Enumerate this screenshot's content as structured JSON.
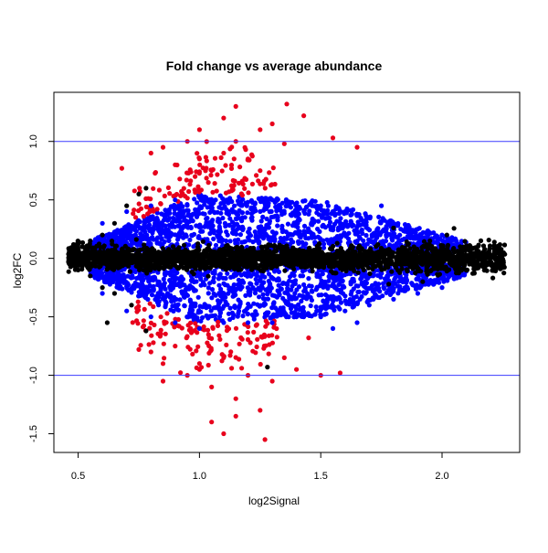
{
  "chart_data": {
    "type": "scatter",
    "title": "Fold change vs average abundance",
    "xlabel": "log2Signal",
    "ylabel": "log2FC",
    "xlim": [
      0.4,
      2.32
    ],
    "ylim": [
      -1.66,
      1.42
    ],
    "xticks": [
      0.5,
      1.0,
      1.5,
      2.0
    ],
    "yticks": [
      -1.5,
      -1.0,
      -0.5,
      0.0,
      0.5,
      1.0
    ],
    "xtick_labels": [
      "0.5",
      "1.0",
      "1.5",
      "2.0"
    ],
    "ytick_labels": [
      "-1.5",
      "-1.0",
      "-0.5",
      "0.0",
      "0.5",
      "1.0"
    ],
    "hlines": [
      1.0,
      -1.0
    ],
    "hline_color": "#3b3bff",
    "grid": false,
    "series": [
      {
        "color": "#000000",
        "points": [
          [
            0.47,
            0.02
          ],
          [
            0.5,
            0.12
          ],
          [
            0.5,
            -0.1
          ],
          [
            0.55,
            0.15
          ],
          [
            0.55,
            -0.15
          ],
          [
            0.6,
            0.2
          ],
          [
            0.6,
            -0.25
          ],
          [
            0.65,
            0.3
          ],
          [
            0.65,
            -0.3
          ],
          [
            0.7,
            0.45
          ],
          [
            0.72,
            -0.4
          ],
          [
            0.75,
            0.55
          ],
          [
            0.78,
            0.6
          ],
          [
            0.62,
            -0.55
          ],
          [
            0.85,
            0.0
          ],
          [
            1.0,
            0.02
          ],
          [
            1.2,
            -0.02
          ],
          [
            1.4,
            0.0
          ],
          [
            1.6,
            0.01
          ],
          [
            1.75,
            0.02
          ],
          [
            1.85,
            0.05
          ],
          [
            1.9,
            -0.1
          ],
          [
            1.95,
            0.15
          ],
          [
            2.0,
            0.1
          ],
          [
            2.05,
            -0.05
          ],
          [
            2.1,
            0.08
          ],
          [
            2.15,
            -0.08
          ],
          [
            2.2,
            0.0
          ],
          [
            2.24,
            -0.07
          ],
          [
            1.78,
            -0.22
          ],
          [
            1.8,
            0.26
          ],
          [
            1.92,
            -0.2
          ],
          [
            2.02,
            0.2
          ],
          [
            1.28,
            -0.93
          ],
          [
            0.78,
            -0.62
          ]
        ]
      },
      {
        "color": "#0000ff",
        "points": [
          [
            0.6,
            0.3
          ],
          [
            0.6,
            -0.3
          ],
          [
            0.7,
            0.4
          ],
          [
            0.7,
            -0.45
          ],
          [
            0.8,
            0.45
          ],
          [
            0.8,
            -0.5
          ],
          [
            0.9,
            0.5
          ],
          [
            0.9,
            -0.55
          ],
          [
            1.0,
            0.52
          ],
          [
            1.0,
            -0.6
          ],
          [
            1.1,
            0.5
          ],
          [
            1.1,
            -0.55
          ],
          [
            1.2,
            0.48
          ],
          [
            1.2,
            -0.55
          ],
          [
            1.3,
            0.5
          ],
          [
            1.3,
            -0.55
          ],
          [
            1.4,
            0.45
          ],
          [
            1.4,
            -0.5
          ],
          [
            1.5,
            0.45
          ],
          [
            1.5,
            -0.5
          ],
          [
            1.6,
            0.4
          ],
          [
            1.6,
            -0.45
          ],
          [
            1.7,
            0.35
          ],
          [
            1.7,
            -0.4
          ],
          [
            1.8,
            0.3
          ],
          [
            1.8,
            -0.35
          ],
          [
            1.9,
            0.25
          ],
          [
            1.9,
            -0.3
          ],
          [
            2.0,
            0.2
          ],
          [
            2.0,
            -0.25
          ],
          [
            1.55,
            -0.6
          ],
          [
            1.65,
            -0.55
          ],
          [
            1.75,
            0.45
          ]
        ]
      },
      {
        "color": "#e8001c",
        "points": [
          [
            0.8,
            0.9
          ],
          [
            0.85,
            0.95
          ],
          [
            0.9,
            0.8
          ],
          [
            0.95,
            1.0
          ],
          [
            1.0,
            0.85
          ],
          [
            1.05,
            0.75
          ],
          [
            1.1,
            0.9
          ],
          [
            1.15,
            1.0
          ],
          [
            1.2,
            0.85
          ],
          [
            1.25,
            1.1
          ],
          [
            1.3,
            1.15
          ],
          [
            1.0,
            1.1
          ],
          [
            1.1,
            1.2
          ],
          [
            1.15,
            1.3
          ],
          [
            1.36,
            1.32
          ],
          [
            1.43,
            1.22
          ],
          [
            1.55,
            1.03
          ],
          [
            1.65,
            0.95
          ],
          [
            1.35,
            0.98
          ],
          [
            0.68,
            0.77
          ],
          [
            1.25,
            0.75
          ],
          [
            0.8,
            -0.8
          ],
          [
            0.85,
            -0.9
          ],
          [
            0.9,
            -0.75
          ],
          [
            0.95,
            -1.0
          ],
          [
            1.0,
            -0.95
          ],
          [
            1.05,
            -1.1
          ],
          [
            1.1,
            -0.85
          ],
          [
            1.15,
            -1.2
          ],
          [
            1.2,
            -1.0
          ],
          [
            1.25,
            -1.3
          ],
          [
            1.27,
            -1.55
          ],
          [
            1.05,
            -1.4
          ],
          [
            1.1,
            -1.5
          ],
          [
            1.15,
            -1.35
          ],
          [
            0.85,
            -1.05
          ],
          [
            1.3,
            -1.05
          ],
          [
            1.35,
            -0.85
          ],
          [
            1.4,
            -0.95
          ],
          [
            1.5,
            -1.0
          ],
          [
            1.58,
            -0.98
          ],
          [
            0.75,
            -0.78
          ],
          [
            1.45,
            -0.68
          ]
        ]
      }
    ]
  }
}
